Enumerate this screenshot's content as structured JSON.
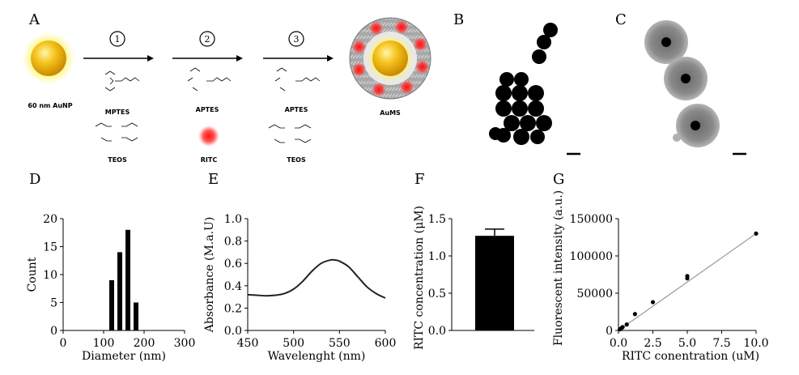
{
  "panels": {
    "A": "A",
    "B": "B",
    "C": "C",
    "D": "D",
    "E": "E",
    "F": "F",
    "G": "G"
  },
  "schematic": {
    "step1": "1",
    "step2": "2",
    "step3": "3",
    "start_label": "60 nm AuNP",
    "end_label": "AuMS",
    "mptes": "MPTES",
    "teos1": "TEOS",
    "aptes1": "APTES",
    "ritc": "RITC",
    "aptes2": "APTES",
    "teos2": "TEOS"
  },
  "colors": {
    "gold": "#f2b81e",
    "ritc_red": "#ff2020",
    "shell_gray": "#9a9a9a"
  },
  "chart_data": [
    {
      "id": "D",
      "type": "bar",
      "xlabel": "Diameter (nm)",
      "ylabel": "Count",
      "xlim": [
        0,
        300
      ],
      "ylim": [
        0,
        20
      ],
      "xticks": [
        "0",
        "100",
        "200",
        "300"
      ],
      "yticks": [
        "0",
        "5",
        "10",
        "15",
        "20"
      ],
      "x": [
        120,
        140,
        160,
        180
      ],
      "values": [
        9,
        14,
        18,
        5
      ]
    },
    {
      "id": "E",
      "type": "line",
      "xlabel": "Wavelenght (nm)",
      "ylabel": "Absorbance (M.a.U)",
      "xlim": [
        450,
        600
      ],
      "ylim": [
        0,
        1.0
      ],
      "xticks": [
        "450",
        "500",
        "550",
        "600"
      ],
      "yticks": [
        "0.0",
        "0.2",
        "0.4",
        "0.6",
        "0.8",
        "1.0"
      ],
      "x": [
        450,
        460,
        470,
        480,
        490,
        500,
        510,
        520,
        530,
        540,
        545,
        550,
        560,
        570,
        580,
        590,
        600
      ],
      "y": [
        0.32,
        0.315,
        0.31,
        0.315,
        0.33,
        0.37,
        0.44,
        0.53,
        0.6,
        0.63,
        0.63,
        0.62,
        0.57,
        0.48,
        0.39,
        0.33,
        0.29
      ]
    },
    {
      "id": "F",
      "type": "bar",
      "xlabel": "",
      "ylabel": "RITC concentration (μM)",
      "ylim": [
        0,
        1.5
      ],
      "yticks": [
        "0.0",
        "0.5",
        "1.0",
        "1.5"
      ],
      "values": [
        1.27
      ],
      "error": [
        0.09
      ]
    },
    {
      "id": "G",
      "type": "scatter",
      "xlabel": "RITC conentration (uM)",
      "ylabel": "Fluorescent intensity (a.u.)",
      "xlim": [
        0,
        10.0
      ],
      "ylim": [
        0,
        150000
      ],
      "xticks": [
        "0.0",
        "2.5",
        "5.0",
        "7.5",
        "10.0"
      ],
      "yticks": [
        "0",
        "50000",
        "100000",
        "150000"
      ],
      "x": [
        0.1,
        0.2,
        0.3,
        0.6,
        1.2,
        2.5,
        5.0,
        5.0,
        10.0
      ],
      "y": [
        1500,
        3000,
        4500,
        8000,
        22000,
        38000,
        70000,
        73000,
        130000
      ],
      "fit": [
        [
          0,
          0
        ],
        [
          10.0,
          130000
        ]
      ]
    }
  ]
}
